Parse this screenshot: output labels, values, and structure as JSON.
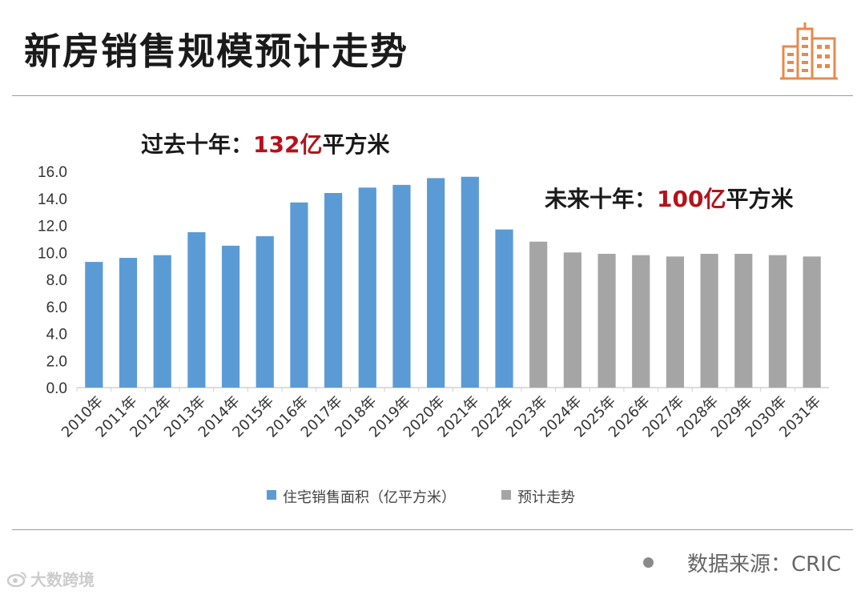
{
  "title": "新房销售规模预计走势",
  "annotations": {
    "past": {
      "prefix": "过去十年：",
      "value": "132亿",
      "suffix": "平方米"
    },
    "future": {
      "prefix": "未来十年：",
      "value": "100亿",
      "suffix": "平方米"
    }
  },
  "source": "数据来源：CRIC",
  "watermark": "大数跨境",
  "colors": {
    "actual": "#5b9bd5",
    "forecast": "#a5a5a5",
    "highlight": "#b5121b",
    "logo": "#e8894a"
  },
  "chart_data": {
    "type": "bar",
    "categories": [
      "2010年",
      "2011年",
      "2012年",
      "2013年",
      "2014年",
      "2015年",
      "2016年",
      "2017年",
      "2018年",
      "2019年",
      "2020年",
      "2021年",
      "2022年",
      "2023年",
      "2024年",
      "2025年",
      "2026年",
      "2027年",
      "2028年",
      "2029年",
      "2030年",
      "2031年"
    ],
    "series": [
      {
        "name": "住宅销售面积（亿平方米）",
        "values": [
          9.3,
          9.6,
          9.8,
          11.5,
          10.5,
          11.2,
          13.7,
          14.4,
          14.8,
          15.0,
          15.5,
          15.6,
          11.7,
          null,
          null,
          null,
          null,
          null,
          null,
          null,
          null,
          null
        ]
      },
      {
        "name": "预计走势",
        "values": [
          null,
          null,
          null,
          null,
          null,
          null,
          null,
          null,
          null,
          null,
          null,
          null,
          null,
          10.8,
          10.0,
          9.9,
          9.8,
          9.7,
          9.9,
          9.9,
          9.8,
          9.7
        ]
      }
    ],
    "ylim": [
      0,
      16
    ],
    "yticks": [
      "0.0",
      "2.0",
      "4.0",
      "6.0",
      "8.0",
      "10.0",
      "12.0",
      "14.0",
      "16.0"
    ],
    "legend": "bottom"
  }
}
